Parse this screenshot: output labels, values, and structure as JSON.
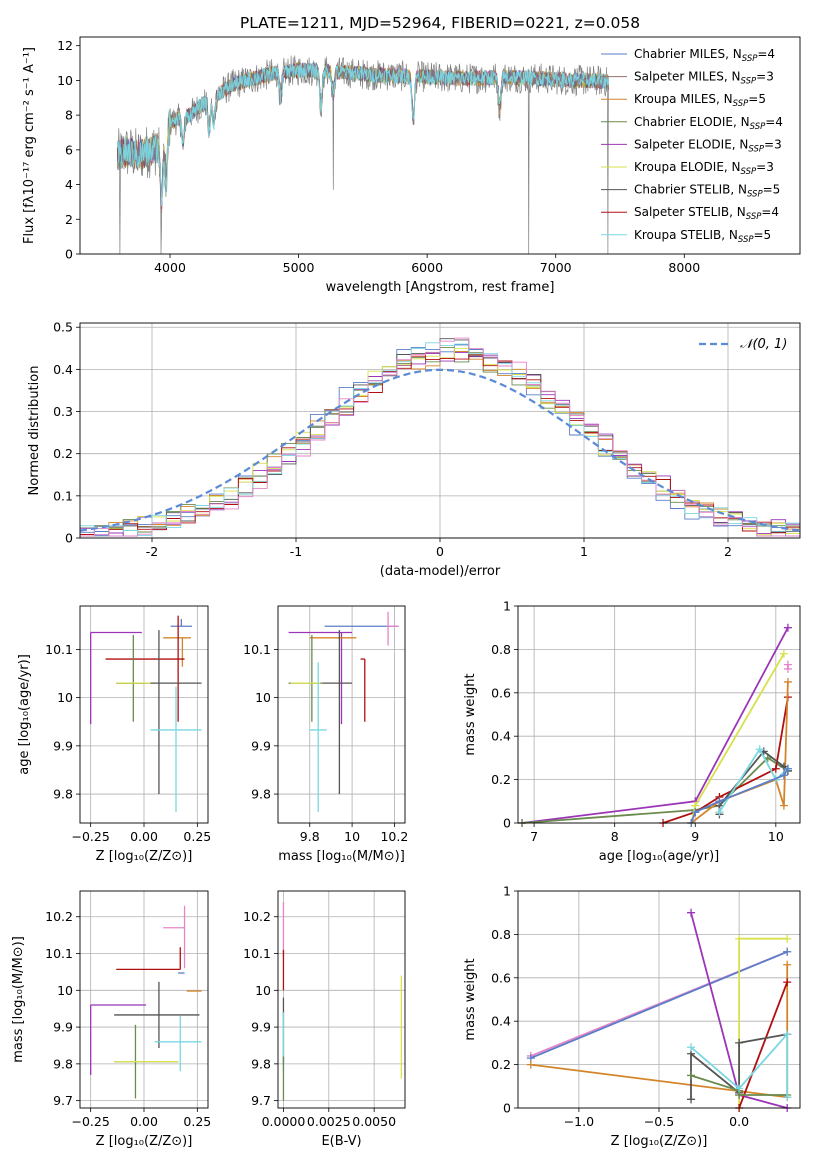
{
  "figure_title": "PLATE=1211, MJD=52964, FIBERID=0221, z=0.058",
  "colors": [
    "#5b7ec9",
    "#9a6f6f",
    "#d4852a",
    "#6a8a4e",
    "#9b35b8",
    "#d8e04a",
    "#555555",
    "#b01010",
    "#7ad7e2"
  ],
  "palette_extra": {
    "grid": "#b0b0b0",
    "normal_curve": "#5b8bd6",
    "pink": "#e585c8"
  },
  "legend": [
    {
      "label": "Chabrier MILES, N",
      "sub": "SSP",
      "suffix": "=4"
    },
    {
      "label": "Salpeter MILES, N",
      "sub": "SSP",
      "suffix": "=3"
    },
    {
      "label": "Kroupa MILES, N",
      "sub": "SSP",
      "suffix": "=5"
    },
    {
      "label": "Chabrier ELODIE, N",
      "sub": "SSP",
      "suffix": "=4"
    },
    {
      "label": "Salpeter ELODIE, N",
      "sub": "SSP",
      "suffix": "=3"
    },
    {
      "label": "Kroupa ELODIE, N",
      "sub": "SSP",
      "suffix": "=3"
    },
    {
      "label": "Chabrier STELIB, N",
      "sub": "SSP",
      "suffix": "=5"
    },
    {
      "label": "Salpeter STELIB, N",
      "sub": "SSP",
      "suffix": "=4"
    },
    {
      "label": "Kroupa STELIB, N",
      "sub": "SSP",
      "suffix": "=5"
    }
  ],
  "chart_data": [
    {
      "id": "spectrum",
      "type": "line",
      "xlabel": "wavelength [Angstrom, rest frame]",
      "ylabel": "Flux [fλ10⁻¹⁷ erg cm⁻² s⁻¹ A⁻¹]",
      "xlim": [
        3300,
        8900
      ],
      "ylim": [
        0,
        12.5
      ],
      "xticks": [
        4000,
        5000,
        6000,
        7000,
        8000
      ],
      "yticks": [
        0,
        2,
        4,
        6,
        8,
        10,
        12
      ],
      "grid": false,
      "data_x_range": [
        3590,
        7410
      ],
      "continuum_anchors": [
        [
          3590,
          5.6
        ],
        [
          3650,
          5.9
        ],
        [
          3750,
          5.7
        ],
        [
          3900,
          6.1
        ],
        [
          4000,
          7.6
        ],
        [
          4150,
          8.0
        ],
        [
          4300,
          8.9
        ],
        [
          4500,
          9.8
        ],
        [
          4800,
          10.4
        ],
        [
          5000,
          10.6
        ],
        [
          5300,
          10.5
        ],
        [
          5600,
          10.3
        ],
        [
          6000,
          10.2
        ],
        [
          6300,
          10.1
        ],
        [
          6600,
          10.2
        ],
        [
          6900,
          10.1
        ],
        [
          7100,
          10.0
        ],
        [
          7300,
          10.0
        ],
        [
          7410,
          9.9
        ]
      ],
      "absorption_features": [
        [
          3934,
          3.5
        ],
        [
          3969,
          3.0
        ],
        [
          4102,
          1.5
        ],
        [
          4304,
          1.8
        ],
        [
          4341,
          1.5
        ],
        [
          4861,
          1.5
        ],
        [
          5175,
          2.0
        ],
        [
          5270,
          1.3
        ],
        [
          5892,
          2.5
        ],
        [
          6563,
          1.8
        ]
      ],
      "spikes": [
        {
          "x": 3610,
          "y": 0
        },
        {
          "x": 3930,
          "y": 0
        },
        {
          "x": 5270,
          "y": 3.7
        },
        {
          "x": 6790,
          "y": 0
        },
        {
          "x": 7405,
          "y": 0
        }
      ],
      "legend_position": "upper right"
    },
    {
      "id": "residuals",
      "type": "histogram",
      "xlabel": "(data-model)/error",
      "ylabel": "Normed distribution",
      "xlim": [
        -2.5,
        2.5
      ],
      "ylim": [
        0,
        0.51
      ],
      "xticks": [
        -2,
        -1,
        0,
        1,
        2
      ],
      "yticks": [
        0,
        0.1,
        0.2,
        0.3,
        0.4,
        0.5
      ],
      "grid": true,
      "bin_width": 0.1,
      "bin_start": -2.5,
      "reference_density": {
        "mean": 0,
        "sigma": 1
      },
      "legend": [
        {
          "label": "𝒩(0, 1)",
          "style": "dashed"
        }
      ],
      "legend_position": "upper right"
    },
    {
      "id": "age_vs_Z",
      "type": "errorbar",
      "xlabel": "Z [log₁₀(Z/Z⊙)]",
      "ylabel": "age  [log₁₀(age/yr)]",
      "xlim": [
        -0.3,
        0.3
      ],
      "ylim": [
        9.74,
        10.19
      ],
      "xticks": [
        -0.25,
        0.0,
        0.25
      ],
      "xtick_labels": [
        "−0.25",
        "0.00",
        "0.25"
      ],
      "yticks": [
        9.8,
        9.9,
        10.0,
        10.1
      ],
      "grid": true,
      "points": [
        {
          "x": 0.175,
          "y": 10.148,
          "xerr": [
            0.05,
            0.05
          ],
          "yerr": [
            0.0,
            0.015
          ],
          "series": 0
        },
        {
          "x": -0.25,
          "y": 10.135,
          "xerr": [
            0.0,
            0.24
          ],
          "yerr": [
            0.19,
            0.0
          ],
          "series": 4
        },
        {
          "x": 0.18,
          "y": 10.124,
          "xerr": [
            0.09,
            0.04
          ],
          "yerr": [
            0.06,
            0.0
          ],
          "series": 2
        },
        {
          "x": 0.16,
          "y": 10.08,
          "xerr": [
            0.34,
            0.03
          ],
          "yerr": [
            0.13,
            0.09
          ],
          "series": 7
        },
        {
          "x": 0.07,
          "y": 10.03,
          "xerr": [
            0.2,
            0.2
          ],
          "yerr": [
            0.23,
            0.11
          ],
          "series": 6
        },
        {
          "x": -0.05,
          "y": 10.03,
          "xerr": [
            0.08,
            0.05
          ],
          "yerr": [
            0.08,
            0.1
          ],
          "series": 3
        },
        {
          "x": -0.05,
          "y": 10.03,
          "xerr": [
            0.08,
            0.08
          ],
          "yerr": [
            0.0,
            0.0
          ],
          "series": 5
        },
        {
          "x": 0.15,
          "y": 9.933,
          "xerr": [
            0.12,
            0.12
          ],
          "yerr": [
            0.17,
            0.09
          ],
          "series": 8
        },
        {
          "x": 0.2,
          "y": 10.148,
          "xerr": [
            0.0,
            0.0
          ],
          "yerr": [
            0.0,
            0.0
          ],
          "series": 9
        }
      ]
    },
    {
      "id": "age_vs_mass",
      "type": "errorbar",
      "xlabel": "mass [log₁₀(M/M⊙)]",
      "ylabel": "",
      "xlim": [
        9.65,
        10.25
      ],
      "ylim": [
        9.74,
        10.19
      ],
      "xticks": [
        9.8,
        10.0,
        10.2
      ],
      "yticks": [
        9.8,
        9.9,
        10.0,
        10.1
      ],
      "grid": true,
      "points": [
        {
          "x": 10.02,
          "y": 10.148,
          "xerr": [
            0.15,
            0.2
          ],
          "yerr": [
            0.0,
            0.0
          ],
          "series": 0
        },
        {
          "x": 9.95,
          "y": 10.135,
          "xerr": [
            0.25,
            0.05
          ],
          "yerr": [
            0.19,
            0.0
          ],
          "series": 4
        },
        {
          "x": 9.97,
          "y": 10.124,
          "xerr": [
            0.17,
            0.05
          ],
          "yerr": [
            0.0,
            0.0
          ],
          "series": 2
        },
        {
          "x": 10.06,
          "y": 10.08,
          "xerr": [
            0.02,
            0.0
          ],
          "yerr": [
            0.13,
            0.0
          ],
          "series": 7
        },
        {
          "x": 9.94,
          "y": 10.03,
          "xerr": [
            0.08,
            0.06
          ],
          "yerr": [
            0.23,
            0.11
          ],
          "series": 6
        },
        {
          "x": 9.81,
          "y": 10.03,
          "xerr": [
            0.11,
            0.05
          ],
          "yerr": [
            0.08,
            0.1
          ],
          "series": 3
        },
        {
          "x": 9.81,
          "y": 10.03,
          "xerr": [
            0.1,
            0.04
          ],
          "yerr": [
            0.0,
            0.0
          ],
          "series": 5
        },
        {
          "x": 9.84,
          "y": 9.933,
          "xerr": [
            0.04,
            0.04
          ],
          "yerr": [
            0.17,
            0.14
          ],
          "series": 8
        },
        {
          "x": 10.17,
          "y": 10.148,
          "xerr": [
            0.0,
            0.05
          ],
          "yerr": [
            0.04,
            0.03
          ],
          "series": 9
        }
      ]
    },
    {
      "id": "weight_vs_age",
      "type": "line",
      "xlabel": "age  [log₁₀(age/yr)]",
      "ylabel": "mass weight",
      "xlim": [
        6.8,
        10.3
      ],
      "ylim": [
        0,
        1.0
      ],
      "xticks": [
        7,
        8,
        9,
        10
      ],
      "yticks": [
        0.0,
        0.2,
        0.4,
        0.6,
        0.8,
        1.0
      ],
      "grid": true,
      "series": [
        {
          "series": 4,
          "x": [
            6.85,
            9.0,
            10.15
          ],
          "y": [
            0.0,
            0.1,
            0.9
          ]
        },
        {
          "series": 3,
          "x": [
            6.85,
            9.0,
            9.3,
            9.9,
            10.15
          ],
          "y": [
            0.0,
            0.06,
            0.08,
            0.3,
            0.24
          ]
        },
        {
          "series": 7,
          "x": [
            8.6,
            9.0,
            9.3,
            10.0,
            10.15
          ],
          "y": [
            0.0,
            0.05,
            0.12,
            0.25,
            0.58
          ]
        },
        {
          "series": 5,
          "x": [
            8.95,
            9.0,
            10.1
          ],
          "y": [
            0.0,
            0.08,
            0.78
          ]
        },
        {
          "series": 2,
          "x": [
            8.95,
            9.3,
            10.0,
            10.1,
            10.15
          ],
          "y": [
            0.0,
            0.1,
            0.2,
            0.08,
            0.65
          ]
        },
        {
          "series": 6,
          "x": [
            9.3,
            9.3,
            9.85,
            10.1,
            10.15
          ],
          "y": [
            0.04,
            0.08,
            0.33,
            0.26,
            0.24
          ]
        },
        {
          "series": 8,
          "x": [
            9.3,
            9.8,
            10.0,
            10.15
          ],
          "y": [
            0.05,
            0.34,
            0.2,
            0.25
          ]
        },
        {
          "series": 0,
          "x": [
            8.95,
            9.0,
            9.3,
            10.1,
            10.15
          ],
          "y": [
            0.0,
            0.05,
            0.1,
            0.22,
            0.25
          ]
        },
        {
          "series": 9,
          "x": [
            10.15,
            10.15
          ],
          "y": [
            0.71,
            0.73
          ]
        }
      ]
    },
    {
      "id": "mass_vs_Z",
      "type": "errorbar",
      "xlabel": "Z [log₁₀(Z/Z⊙)]",
      "ylabel": "mass [log₁₀(M/M⊙)]",
      "xlim": [
        -0.3,
        0.3
      ],
      "ylim": [
        9.68,
        10.27
      ],
      "xticks": [
        -0.25,
        0.0,
        0.25
      ],
      "xtick_labels": [
        "−0.25",
        "0.00",
        "0.25"
      ],
      "yticks": [
        9.7,
        9.8,
        9.9,
        10.0,
        10.1,
        10.2
      ],
      "grid": true,
      "points": [
        {
          "x": 0.19,
          "y": 10.17,
          "xerr": [
            0.1,
            0.0
          ],
          "yerr": [
            0.11,
            0.06
          ],
          "series": 9
        },
        {
          "x": 0.17,
          "y": 10.057,
          "xerr": [
            0.3,
            0.0
          ],
          "yerr": [
            0.0,
            0.06
          ],
          "series": 7
        },
        {
          "x": 0.19,
          "y": 10.047,
          "xerr": [
            0.03,
            0.0
          ],
          "yerr": [
            0.0,
            0.0
          ],
          "series": 0
        },
        {
          "x": 0.2,
          "y": 9.998,
          "xerr": [
            0.0,
            0.07
          ],
          "yerr": [
            0.0,
            0.0
          ],
          "series": 2
        },
        {
          "x": -0.25,
          "y": 9.96,
          "xerr": [
            0.0,
            0.26
          ],
          "yerr": [
            0.19,
            0.0
          ],
          "series": 4
        },
        {
          "x": 0.07,
          "y": 9.933,
          "xerr": [
            0.21,
            0.19
          ],
          "yerr": [
            0.09,
            0.09
          ],
          "series": 6
        },
        {
          "x": 0.17,
          "y": 9.86,
          "xerr": [
            0.12,
            0.1
          ],
          "yerr": [
            0.08,
            0.07
          ],
          "series": 8
        },
        {
          "x": -0.04,
          "y": 9.806,
          "xerr": [
            0.1,
            0.2
          ],
          "yerr": [
            0.1,
            0.1
          ],
          "series": 3
        },
        {
          "x": -0.04,
          "y": 9.806,
          "xerr": [
            0.1,
            0.2
          ],
          "yerr": [
            0.0,
            0.0
          ],
          "series": 5
        }
      ]
    },
    {
      "id": "mass_vs_ebv",
      "type": "errorbar",
      "xlabel": "E(B-V)",
      "ylabel": "",
      "xlim": [
        -0.0003,
        0.0067
      ],
      "ylim": [
        9.68,
        10.27
      ],
      "xticks": [
        0.0,
        0.0025,
        0.005
      ],
      "xtick_labels": [
        "0.0000",
        "0.0025",
        "0.0050"
      ],
      "yticks": [
        9.7,
        9.8,
        9.9,
        10.0,
        10.1,
        10.2
      ],
      "grid": true,
      "points": [
        {
          "x": 0.0,
          "y": 10.17,
          "xerr": [
            0.0,
            0.0
          ],
          "yerr": [
            0.08,
            0.07
          ],
          "series": 9
        },
        {
          "x": 0.0,
          "y": 10.05,
          "xerr": [
            0.0,
            0.0
          ],
          "yerr": [
            0.05,
            0.06
          ],
          "series": 7
        },
        {
          "x": 0.0,
          "y": 9.93,
          "xerr": [
            0.0,
            0.0
          ],
          "yerr": [
            0.13,
            0.05
          ],
          "series": 6
        },
        {
          "x": 0.0,
          "y": 9.86,
          "xerr": [
            0.0,
            0.0
          ],
          "yerr": [
            0.08,
            0.08
          ],
          "series": 8
        },
        {
          "x": 0.0,
          "y": 9.76,
          "xerr": [
            0.0,
            0.0
          ],
          "yerr": [
            0.06,
            0.06
          ],
          "series": 3
        },
        {
          "x": 0.0065,
          "y": 9.9,
          "xerr": [
            0.0,
            0.0
          ],
          "yerr": [
            0.14,
            0.14
          ],
          "series": 5
        }
      ]
    },
    {
      "id": "weight_vs_Z",
      "type": "line",
      "xlabel": "Z [log₁₀(Z/Z⊙)]",
      "ylabel": "mass weight",
      "xlim": [
        -1.38,
        0.38
      ],
      "ylim": [
        0,
        1.0
      ],
      "xticks": [
        -1.0,
        -0.5,
        0.0
      ],
      "xtick_labels": [
        "−1.0",
        "−0.5",
        "0.0"
      ],
      "yticks": [
        0.0,
        0.2,
        0.4,
        0.6,
        0.8,
        1.0
      ],
      "grid": true,
      "series": [
        {
          "series": 9,
          "x": [
            -1.3,
            0.3
          ],
          "y": [
            0.24,
            0.72
          ]
        },
        {
          "series": 0,
          "x": [
            -1.3,
            0.3
          ],
          "y": [
            0.23,
            0.72
          ]
        },
        {
          "series": 2,
          "x": [
            -1.3,
            0.3,
            0.3
          ],
          "y": [
            0.2,
            0.05,
            0.66
          ]
        },
        {
          "series": 4,
          "x": [
            -0.3,
            0.0,
            0.3
          ],
          "y": [
            0.9,
            0.06,
            0.0
          ]
        },
        {
          "series": 5,
          "x": [
            0.0,
            0.0,
            0.3
          ],
          "y": [
            0.0,
            0.78,
            0.78
          ]
        },
        {
          "series": 7,
          "x": [
            0.0,
            0.3
          ],
          "y": [
            0.0,
            0.58
          ]
        },
        {
          "series": 6,
          "x": [
            -0.3,
            -0.3,
            0.0,
            0.0,
            0.3
          ],
          "y": [
            0.04,
            0.25,
            0.07,
            0.3,
            0.34
          ]
        },
        {
          "series": 3,
          "x": [
            -0.3,
            0.0,
            0.0,
            0.3
          ],
          "y": [
            0.15,
            0.08,
            0.06,
            0.06
          ]
        },
        {
          "series": 8,
          "x": [
            -0.3,
            0.0,
            0.3,
            0.3
          ],
          "y": [
            0.28,
            0.09,
            0.34,
            0.05
          ]
        }
      ]
    }
  ]
}
